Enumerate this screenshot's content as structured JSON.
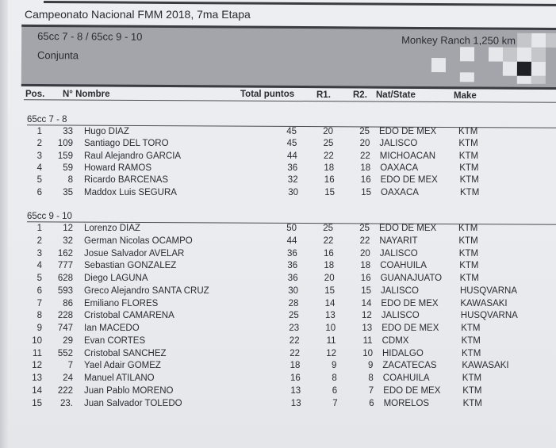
{
  "title": "Campeonato Nacional FMM 2018, 7ma Etapa",
  "banner": {
    "categories": "65cc 7 - 8 / 65cc 9 - 10",
    "type": "Conjunta",
    "venue": "Monkey Ranch 1,250 km"
  },
  "columns": {
    "pos": "Pos.",
    "num": "N° Nombre",
    "total": "Total puntos",
    "r1": "R1.",
    "r2": "R2.",
    "state": "Nat/State",
    "make": "Make"
  },
  "sections": [
    {
      "label": "65cc 7 - 8",
      "rows": [
        [
          "1",
          "33",
          "Hugo DIAZ",
          "45",
          "20",
          "25",
          "EDO DE MEX",
          "KTM"
        ],
        [
          "2",
          "109",
          "Santiago DEL TORO",
          "45",
          "25",
          "20",
          "JALISCO",
          "KTM"
        ],
        [
          "3",
          "159",
          "Raul Alejandro GARCIA",
          "44",
          "22",
          "22",
          "MICHOACAN",
          "KTM"
        ],
        [
          "4",
          "59",
          "Howard RAMOS",
          "36",
          "18",
          "18",
          "OAXACA",
          "KTM"
        ],
        [
          "5",
          "8",
          "Ricardo BARCENAS",
          "32",
          "16",
          "16",
          "EDO DE MEX",
          "KTM"
        ],
        [
          "6",
          "35",
          "Maddox Luis SEGURA",
          "30",
          "15",
          "15",
          "OAXACA",
          "KTM"
        ]
      ]
    },
    {
      "label": "65cc 9 - 10",
      "rows": [
        [
          "1",
          "12",
          "Lorenzo DIAZ",
          "50",
          "25",
          "25",
          "EDO DE MEX",
          "KTM"
        ],
        [
          "2",
          "32",
          "German Nicolas OCAMPO",
          "44",
          "22",
          "22",
          "NAYARIT",
          "KTM"
        ],
        [
          "3",
          "162",
          "Josue Salvador AVELAR",
          "36",
          "16",
          "20",
          "JALISCO",
          "KTM"
        ],
        [
          "4",
          "777",
          "Sebastian GONZALEZ",
          "36",
          "18",
          "18",
          "COAHUILA",
          "KTM"
        ],
        [
          "5",
          "628",
          "Diego LAGUNA",
          "36",
          "20",
          "16",
          "GUANAJUATO",
          "KTM"
        ],
        [
          "6",
          "593",
          "Greco Alejandro SANTA CRUZ",
          "30",
          "15",
          "15",
          "JALISCO",
          "HUSQVARNA"
        ],
        [
          "7",
          "86",
          "Emiliano FLORES",
          "28",
          "14",
          "14",
          "EDO DE MEX",
          "KAWASAKI"
        ],
        [
          "8",
          "228",
          "Cristobal CAMARENA",
          "25",
          "13",
          "12",
          "JALISCO",
          "HUSQVARNA"
        ],
        [
          "9",
          "747",
          "Ian  MACEDO",
          "23",
          "10",
          "13",
          "EDO DE MEX",
          "KTM"
        ],
        [
          "10",
          "29",
          "Evan CORTES",
          "22",
          "11",
          "11",
          "CDMX",
          "KTM"
        ],
        [
          "11",
          "552",
          "Cristobal SANCHEZ",
          "22",
          "12",
          "10",
          "HIDALGO",
          "KTM"
        ],
        [
          "12",
          "7",
          "Yael Adair GOMEZ",
          "18",
          "9",
          "9",
          "ZACATECAS",
          "KAWASAKI"
        ],
        [
          "13",
          "24",
          "Manuel ATILANO",
          "16",
          "8",
          "8",
          "COAHUILA",
          "KTM"
        ],
        [
          "14",
          "222",
          "Juan Pablo MORENO",
          "13",
          "6",
          "7",
          "EDO DE MEX",
          "KTM"
        ],
        [
          "15",
          "23.",
          "Juan Salvador TOLEDO",
          "13",
          "7",
          "6",
          "MORELOS",
          "KTM"
        ]
      ]
    }
  ]
}
